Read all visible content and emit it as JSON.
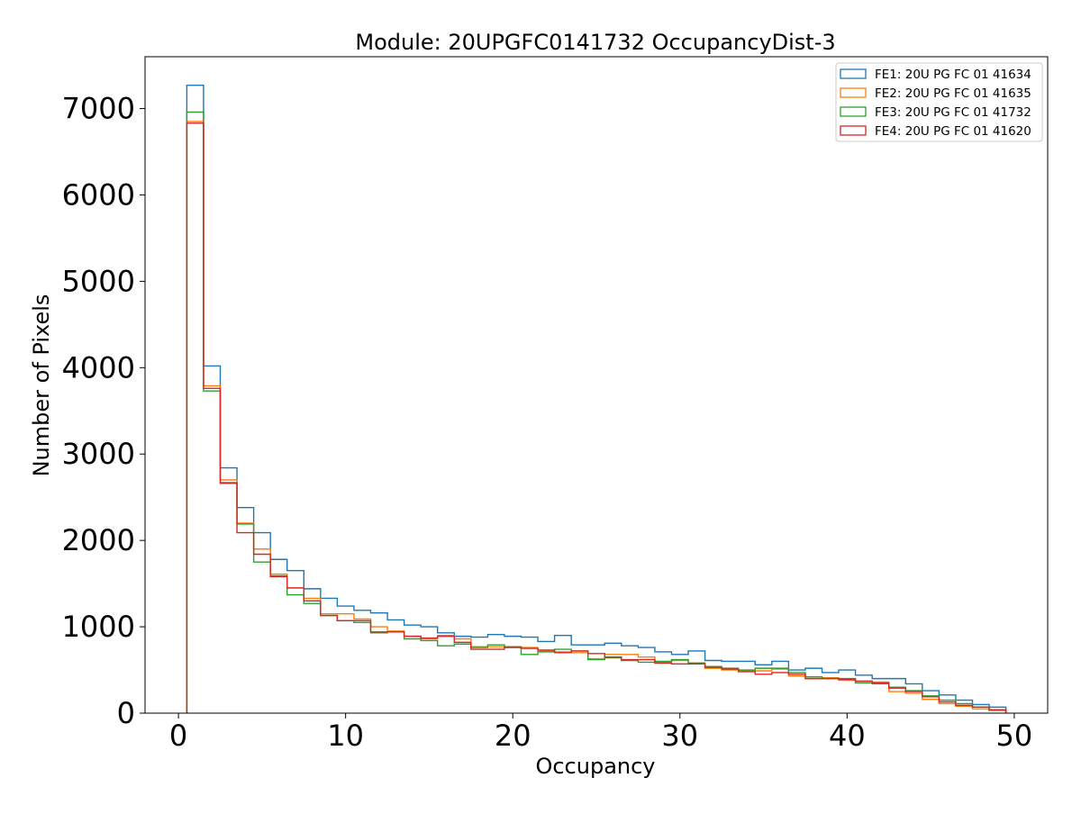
{
  "chart_data": {
    "type": "histogram",
    "title": "Module: 20UPGFC0141732 OccupancyDist-3",
    "xlabel": "Occupancy",
    "ylabel": "Number of Pixels",
    "xlim": [
      -2,
      52
    ],
    "ylim": [
      0,
      7600
    ],
    "xticks": [
      0,
      10,
      20,
      30,
      40,
      50
    ],
    "yticks": [
      0,
      1000,
      2000,
      3000,
      4000,
      5000,
      6000,
      7000
    ],
    "bin_edges_start": 0.5,
    "bin_width": 1,
    "legend_position": "top-right",
    "series": [
      {
        "name": "FE1: 20U PG FC 01 41634",
        "color": "#1f77b4",
        "values": [
          7270,
          4020,
          2840,
          2380,
          2090,
          1780,
          1650,
          1440,
          1330,
          1240,
          1190,
          1160,
          1080,
          1020,
          1000,
          930,
          890,
          880,
          910,
          890,
          880,
          830,
          900,
          790,
          790,
          810,
          780,
          760,
          710,
          680,
          720,
          610,
          600,
          600,
          560,
          600,
          500,
          520,
          470,
          500,
          440,
          400,
          400,
          340,
          260,
          210,
          150,
          100,
          70
        ]
      },
      {
        "name": "FE2: 20U PG FC 01 41635",
        "color": "#ff7f0e",
        "values": [
          6850,
          3790,
          2700,
          2200,
          1900,
          1610,
          1450,
          1330,
          1150,
          1150,
          1090,
          1000,
          950,
          890,
          860,
          900,
          860,
          770,
          770,
          760,
          760,
          720,
          710,
          700,
          630,
          680,
          680,
          650,
          590,
          610,
          580,
          520,
          500,
          490,
          490,
          510,
          430,
          400,
          410,
          380,
          370,
          360,
          250,
          230,
          160,
          110,
          80,
          50,
          30
        ]
      },
      {
        "name": "FE3: 20U PG FC 01 41732",
        "color": "#2ca02c",
        "values": [
          6960,
          3730,
          2670,
          2190,
          1750,
          1590,
          1370,
          1270,
          1130,
          1070,
          1050,
          930,
          940,
          860,
          840,
          780,
          800,
          760,
          790,
          770,
          680,
          710,
          740,
          720,
          620,
          640,
          610,
          590,
          600,
          620,
          580,
          540,
          520,
          500,
          520,
          520,
          470,
          420,
          400,
          400,
          350,
          340,
          300,
          260,
          200,
          150,
          110,
          70,
          40
        ]
      },
      {
        "name": "FE4: 20U PG FC 01 41620",
        "color": "#d62728",
        "values": [
          6830,
          3760,
          2660,
          2090,
          1840,
          1580,
          1450,
          1300,
          1130,
          1070,
          1070,
          940,
          940,
          890,
          870,
          890,
          820,
          740,
          740,
          760,
          750,
          730,
          700,
          720,
          690,
          650,
          620,
          620,
          580,
          570,
          570,
          530,
          510,
          480,
          450,
          470,
          450,
          400,
          400,
          390,
          370,
          350,
          290,
          250,
          190,
          130,
          90,
          70,
          40
        ]
      }
    ]
  }
}
